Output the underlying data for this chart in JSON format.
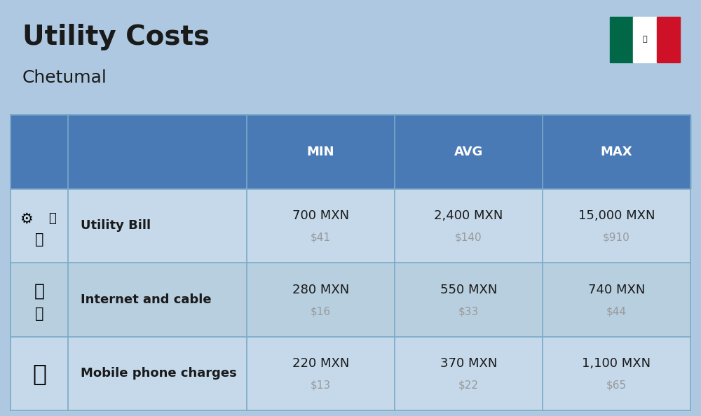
{
  "title": "Utility Costs",
  "subtitle": "Chetumal",
  "background_color": "#adc8e0",
  "header_color": "#4a7ab5",
  "header_text_color": "#ffffff",
  "row_colors": [
    "#c5d9ea",
    "#b8cfe0",
    "#c5d9ea"
  ],
  "col_headers": [
    "MIN",
    "AVG",
    "MAX"
  ],
  "rows": [
    {
      "label": "Utility Bill",
      "min_mxn": "700 MXN",
      "min_usd": "$41",
      "avg_mxn": "2,400 MXN",
      "avg_usd": "$140",
      "max_mxn": "15,000 MXN",
      "max_usd": "$910"
    },
    {
      "label": "Internet and cable",
      "min_mxn": "280 MXN",
      "min_usd": "$16",
      "avg_mxn": "550 MXN",
      "avg_usd": "$33",
      "max_mxn": "740 MXN",
      "max_usd": "$44"
    },
    {
      "label": "Mobile phone charges",
      "min_mxn": "220 MXN",
      "min_usd": "$13",
      "avg_mxn": "370 MXN",
      "avg_usd": "$22",
      "max_mxn": "1,100 MXN",
      "max_usd": "$65"
    }
  ],
  "flag_green": "#006847",
  "flag_white": "#ffffff",
  "flag_red": "#ce1126",
  "title_fontsize": 28,
  "subtitle_fontsize": 18,
  "header_fontsize": 13,
  "label_fontsize": 13,
  "value_fontsize": 13,
  "usd_fontsize": 11,
  "line_color": "#7aaac8",
  "usd_color": "#999999",
  "text_color": "#1a1a1a"
}
